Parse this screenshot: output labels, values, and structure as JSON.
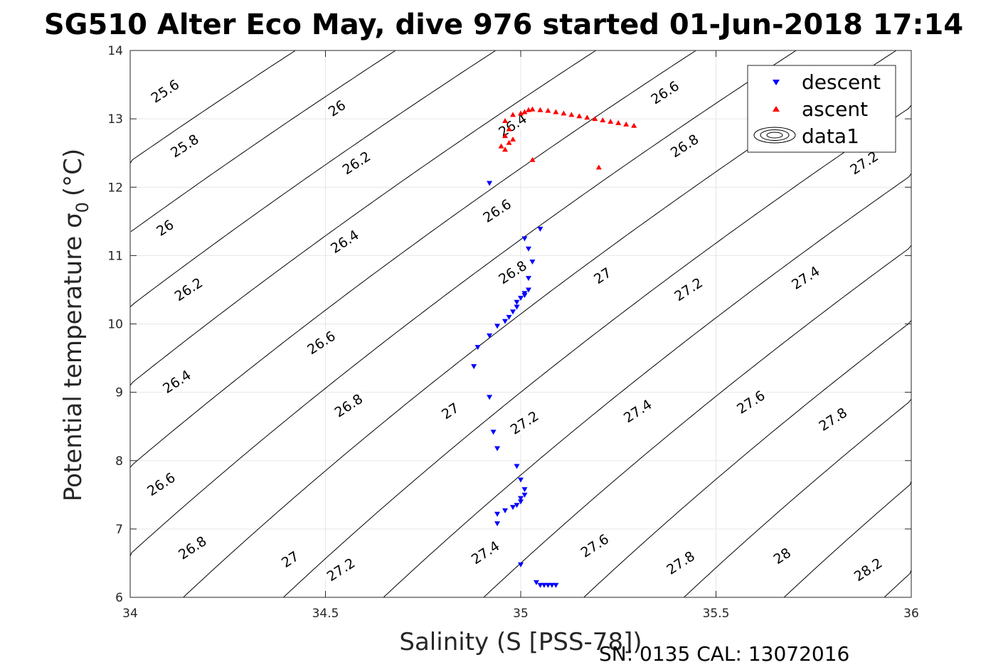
{
  "chart_data": {
    "type": "scatter",
    "title": "SG510 Alter Eco May, dive 976 started 01-Jun-2018 17:14",
    "xlabel": "Salinity (S [PSS-78])",
    "ylabel": "Potential temperature σ",
    "ylabel_subscript": "0",
    "ylabel_unit": "(°C)",
    "xlim": [
      34,
      36
    ],
    "ylim": [
      6,
      14
    ],
    "xticks": [
      "34",
      "34.5",
      "35",
      "35.5",
      "36"
    ],
    "yticks": [
      "6",
      "7",
      "8",
      "9",
      "10",
      "11",
      "12",
      "13",
      "14"
    ],
    "grid": true,
    "legend_position": "top-right",
    "legend": [
      "descent",
      "ascent",
      "data1"
    ],
    "contour_levels": [
      25.6,
      25.8,
      26.0,
      26.2,
      26.4,
      26.6,
      26.8,
      27.0,
      27.2,
      27.4,
      27.6,
      27.8,
      28.0,
      28.2
    ],
    "contour_labels": [
      {
        "text": "25.6",
        "s": 34.09,
        "t": 13.4
      },
      {
        "text": "25.8",
        "s": 34.14,
        "t": 12.6
      },
      {
        "text": "26",
        "s": 34.09,
        "t": 11.4
      },
      {
        "text": "26",
        "s": 34.53,
        "t": 13.15
      },
      {
        "text": "26.2",
        "s": 34.15,
        "t": 10.5
      },
      {
        "text": "26.2",
        "s": 34.58,
        "t": 12.35
      },
      {
        "text": "26.4",
        "s": 34.12,
        "t": 9.15
      },
      {
        "text": "26.4",
        "s": 34.55,
        "t": 11.2
      },
      {
        "text": "26.4",
        "s": 34.98,
        "t": 12.9
      },
      {
        "text": "26.6",
        "s": 34.08,
        "t": 7.65
      },
      {
        "text": "26.6",
        "s": 34.49,
        "t": 9.72
      },
      {
        "text": "26.6",
        "s": 34.94,
        "t": 11.65
      },
      {
        "text": "26.6",
        "s": 35.37,
        "t": 13.38
      },
      {
        "text": "26.8",
        "s": 34.16,
        "t": 6.72
      },
      {
        "text": "26.8",
        "s": 34.56,
        "t": 8.8
      },
      {
        "text": "26.8",
        "s": 34.98,
        "t": 10.75
      },
      {
        "text": "26.8",
        "s": 35.42,
        "t": 12.6
      },
      {
        "text": "27",
        "s": 34.41,
        "t": 6.55
      },
      {
        "text": "27",
        "s": 34.82,
        "t": 8.72
      },
      {
        "text": "27",
        "s": 35.21,
        "t": 10.7
      },
      {
        "text": "27.2",
        "s": 34.54,
        "t": 6.4
      },
      {
        "text": "27.2",
        "s": 35.01,
        "t": 8.55
      },
      {
        "text": "27.2",
        "s": 35.43,
        "t": 10.5
      },
      {
        "text": "27.2",
        "s": 35.88,
        "t": 12.35
      },
      {
        "text": "27.4",
        "s": 34.91,
        "t": 6.65
      },
      {
        "text": "27.4",
        "s": 35.3,
        "t": 8.72
      },
      {
        "text": "27.4",
        "s": 35.73,
        "t": 10.67
      },
      {
        "text": "27.6",
        "s": 35.19,
        "t": 6.75
      },
      {
        "text": "27.6",
        "s": 35.59,
        "t": 8.85
      },
      {
        "text": "27.8",
        "s": 35.41,
        "t": 6.5
      },
      {
        "text": "27.8",
        "s": 35.8,
        "t": 8.6
      },
      {
        "text": "28",
        "s": 35.67,
        "t": 6.6
      },
      {
        "text": "28.2",
        "s": 35.89,
        "t": 6.4
      }
    ],
    "series": [
      {
        "name": "descent",
        "marker": "triangle-down",
        "color": "#0000ff",
        "points": [
          [
            34.92,
            12.06
          ],
          [
            35.05,
            11.39
          ],
          [
            35.01,
            11.25
          ],
          [
            35.02,
            11.1
          ],
          [
            35.03,
            10.91
          ],
          [
            35.02,
            10.67
          ],
          [
            35.02,
            10.5
          ],
          [
            35.01,
            10.45
          ],
          [
            35.01,
            10.42
          ],
          [
            35.0,
            10.38
          ],
          [
            34.99,
            10.32
          ],
          [
            34.99,
            10.25
          ],
          [
            34.98,
            10.18
          ],
          [
            34.97,
            10.1
          ],
          [
            34.96,
            10.04
          ],
          [
            34.94,
            9.97
          ],
          [
            34.92,
            9.83
          ],
          [
            34.89,
            9.66
          ],
          [
            34.88,
            9.38
          ],
          [
            34.92,
            8.93
          ],
          [
            34.93,
            8.42
          ],
          [
            34.94,
            8.18
          ],
          [
            34.99,
            7.92
          ],
          [
            35.0,
            7.72
          ],
          [
            35.01,
            7.58
          ],
          [
            35.01,
            7.5
          ],
          [
            35.0,
            7.45
          ],
          [
            35.0,
            7.4
          ],
          [
            34.99,
            7.35
          ],
          [
            34.98,
            7.32
          ],
          [
            34.96,
            7.27
          ],
          [
            34.94,
            7.22
          ],
          [
            34.94,
            7.08
          ],
          [
            35.0,
            6.48
          ],
          [
            35.04,
            6.22
          ],
          [
            35.05,
            6.18
          ],
          [
            35.06,
            6.18
          ],
          [
            35.07,
            6.18
          ],
          [
            35.08,
            6.18
          ],
          [
            35.09,
            6.18
          ]
        ]
      },
      {
        "name": "ascent",
        "marker": "triangle-up",
        "color": "#ff0000",
        "points": [
          [
            35.29,
            12.9
          ],
          [
            35.27,
            12.92
          ],
          [
            35.25,
            12.94
          ],
          [
            35.23,
            12.96
          ],
          [
            35.21,
            12.98
          ],
          [
            35.19,
            13.0
          ],
          [
            35.17,
            13.02
          ],
          [
            35.15,
            13.04
          ],
          [
            35.13,
            13.06
          ],
          [
            35.11,
            13.08
          ],
          [
            35.09,
            13.1
          ],
          [
            35.07,
            13.12
          ],
          [
            35.05,
            13.13
          ],
          [
            35.03,
            13.14
          ],
          [
            35.02,
            13.13
          ],
          [
            35.01,
            13.1
          ],
          [
            35.0,
            13.08
          ],
          [
            34.98,
            13.06
          ],
          [
            34.96,
            12.97
          ],
          [
            34.97,
            12.85
          ],
          [
            34.96,
            12.75
          ],
          [
            34.98,
            12.7
          ],
          [
            34.97,
            12.65
          ],
          [
            34.95,
            12.6
          ],
          [
            34.96,
            12.55
          ],
          [
            35.03,
            12.4
          ],
          [
            35.2,
            12.29
          ]
        ]
      }
    ]
  },
  "footer": "SN: 0135  CAL: 13072016"
}
